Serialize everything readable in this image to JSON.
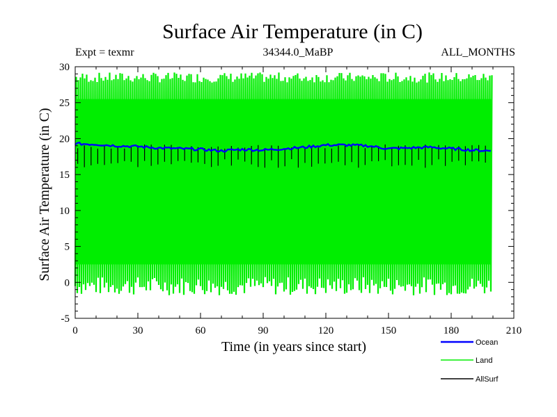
{
  "chart_data": {
    "type": "line",
    "title": "Surface Air Temperature (in C)",
    "header_left": "Expt = texmr",
    "header_center": "34344.0_MaBP",
    "header_right": "ALL_MONTHS",
    "xlabel": "Time (in years since start)",
    "ylabel": "Surface Air Temperature (in C)",
    "xlim": [
      0,
      210
    ],
    "ylim": [
      -5,
      30
    ],
    "xticks": [
      0,
      30,
      60,
      90,
      120,
      150,
      180,
      210
    ],
    "yticks": [
      -5,
      0,
      5,
      10,
      15,
      20,
      25,
      30
    ],
    "series": [
      {
        "name": "Land",
        "color": "#00ee00",
        "description": "Seasonal (monthly) cycle, ~200 years",
        "seasonal_min_range": [
          -2.5,
          1.5
        ],
        "seasonal_max_range": [
          27.5,
          29.0
        ],
        "typical_min": -0.5,
        "typical_max": 28.5
      },
      {
        "name": "AllSurf",
        "color": "#000000",
        "description": "Seasonal cycle with narrow range, mostly hidden",
        "typical_min": 16.3,
        "typical_max": 19.2
      },
      {
        "name": "Ocean",
        "color": "#0000ff",
        "description": "Smooth annual-mean-like signal",
        "x": [
          0,
          10,
          20,
          30,
          40,
          50,
          60,
          70,
          80,
          90,
          100,
          110,
          120,
          130,
          140,
          150,
          160,
          170,
          180,
          190,
          199
        ],
        "y": [
          19.3,
          19.2,
          19.0,
          18.9,
          18.7,
          18.6,
          18.5,
          18.3,
          18.5,
          18.4,
          18.6,
          18.8,
          19.1,
          19.1,
          19.0,
          18.6,
          18.7,
          18.8,
          18.6,
          18.4,
          18.3
        ]
      }
    ],
    "legend": [
      "Ocean",
      "Land",
      "AllSurf"
    ],
    "legend_position": "bottom-right"
  }
}
